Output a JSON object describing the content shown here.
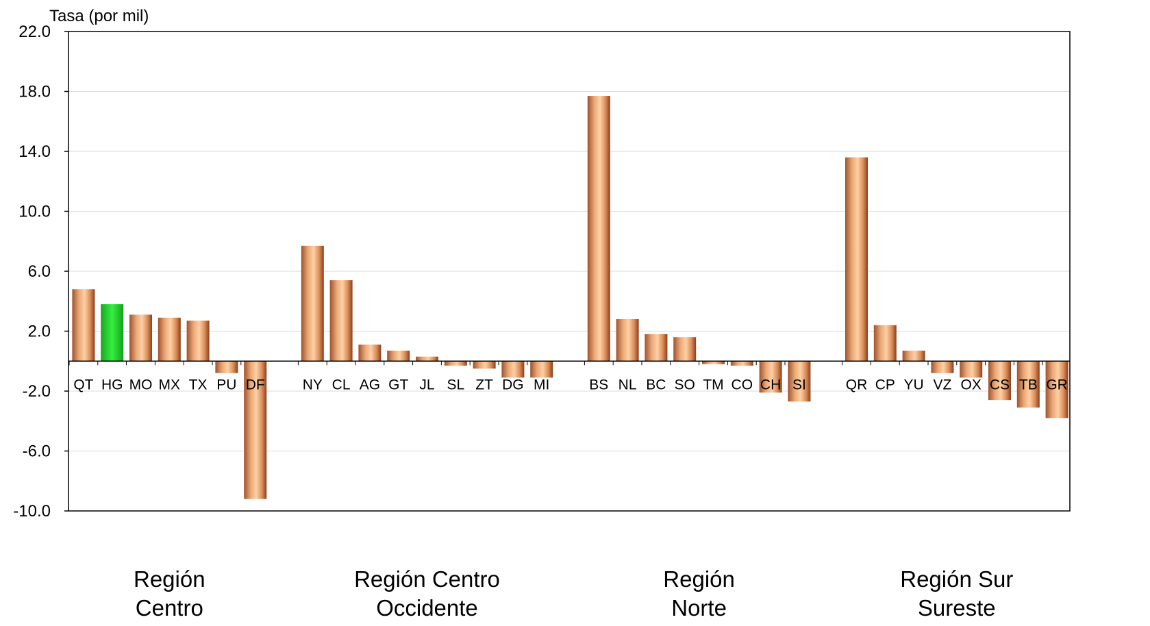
{
  "chart_data": {
    "type": "bar",
    "ylabel": "Tasa (por mil)",
    "ylim": [
      -10.0,
      22.0
    ],
    "yticks": [
      "22.0",
      "18.0",
      "14.0",
      "10.0",
      "6.0",
      "2.0",
      "-2.0",
      "-6.0",
      "-10.0"
    ],
    "ytick_values": [
      22,
      18,
      14,
      10,
      6,
      2,
      -2,
      -6,
      -10
    ],
    "grid": true,
    "colors": {
      "bar": "#d48c5a",
      "highlight": "#22d22a",
      "axis": "#000000",
      "grid": "#d9d9d9"
    },
    "groups": [
      {
        "name": "Región\nCentro",
        "name_lines": [
          "Región",
          "Centro"
        ],
        "categories": [
          "QT",
          "HG",
          "MO",
          "MX",
          "TX",
          "PU",
          "DF"
        ],
        "values": [
          4.8,
          3.8,
          3.1,
          2.9,
          2.7,
          -0.8,
          -9.2
        ]
      },
      {
        "name": "Región Centro\nOccidente",
        "name_lines": [
          "Región Centro",
          "Occidente"
        ],
        "categories": [
          "NY",
          "CL",
          "AG",
          "GT",
          "JL",
          "SL",
          "ZT",
          "DG",
          "MI"
        ],
        "values": [
          7.7,
          5.4,
          1.1,
          0.7,
          0.3,
          -0.3,
          -0.5,
          -1.1,
          -1.1
        ]
      },
      {
        "name": "Región\nNorte",
        "name_lines": [
          "Región",
          "Norte"
        ],
        "categories": [
          "BS",
          "NL",
          "BC",
          "SO",
          "TM",
          "CO",
          "CH",
          "SI"
        ],
        "values": [
          17.7,
          2.8,
          1.8,
          1.6,
          -0.2,
          -0.3,
          -2.1,
          -2.7
        ]
      },
      {
        "name": "Región Sur\nSureste",
        "name_lines": [
          "Región Sur",
          "Sureste"
        ],
        "categories": [
          "QR",
          "CP",
          "YU",
          "VZ",
          "OX",
          "CS",
          "TB",
          "GR"
        ],
        "values": [
          13.6,
          2.4,
          0.7,
          -0.8,
          -1.1,
          -2.6,
          -3.1,
          -3.8
        ]
      }
    ],
    "highlight": "HG"
  }
}
